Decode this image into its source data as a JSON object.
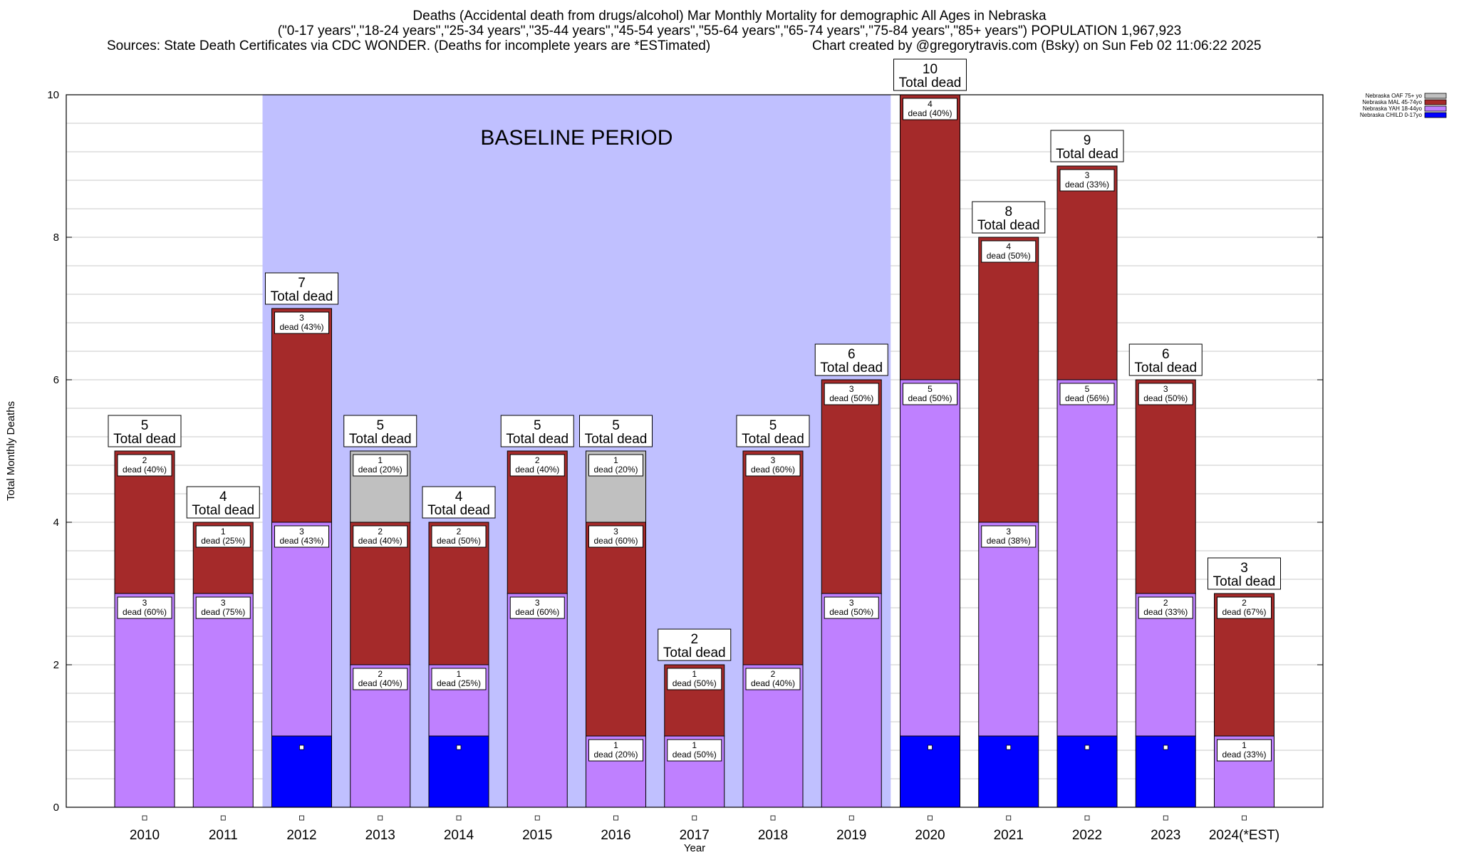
{
  "header": {
    "title": "Deaths (Accidental death from drugs/alcohol) Mar Monthly Mortality for demographic All Ages in Nebraska",
    "subtitle": "(\"0-17 years\",\"18-24 years\",\"25-34 years\",\"35-44 years\",\"45-54 years\",\"55-64 years\",\"65-74 years\",\"75-84 years\",\"85+ years\") POPULATION 1,967,923",
    "sources": "Sources: State Death Certificates via CDC WONDER. (Deaths for incomplete years are *ESTimated)",
    "credit": "Chart created by @gregorytravis.com (Bsky) on Sun Feb 02 11:06:22 2025"
  },
  "chart_data": {
    "type": "bar",
    "stacked": true,
    "categories": [
      "2010",
      "2011",
      "2012",
      "2013",
      "2014",
      "2015",
      "2016",
      "2017",
      "2018",
      "2019",
      "2020",
      "2021",
      "2022",
      "2023",
      "2024(*EST)"
    ],
    "series": [
      {
        "name": "Nebraska CHILD 0-17yo",
        "color": "#0000ff",
        "values": [
          0,
          0,
          1,
          0,
          1,
          0,
          0,
          0,
          0,
          0,
          1,
          1,
          1,
          1,
          0
        ]
      },
      {
        "name": "Nebraska YAH 18-44yo",
        "color": "#bf80ff",
        "values": [
          3,
          3,
          3,
          2,
          1,
          3,
          1,
          1,
          2,
          3,
          5,
          3,
          5,
          2,
          1
        ]
      },
      {
        "name": "Nebraska MAL 45-74yo",
        "color": "#a52a2a",
        "values": [
          2,
          1,
          3,
          2,
          2,
          2,
          3,
          1,
          3,
          3,
          4,
          4,
          3,
          3,
          2
        ]
      },
      {
        "name": "Nebraska OAF 75+ yo",
        "color": "#c0c0c0",
        "values": [
          0,
          0,
          0,
          1,
          0,
          0,
          1,
          0,
          0,
          0,
          0,
          0,
          0,
          0,
          0
        ]
      }
    ],
    "segment_labels": [
      [
        null,
        {
          "n": "3",
          "t": "dead (60%)"
        },
        {
          "n": "2",
          "t": "dead (40%)"
        },
        null
      ],
      [
        null,
        {
          "n": "3",
          "t": "dead (75%)"
        },
        {
          "n": "1",
          "t": "dead (25%)"
        },
        null
      ],
      [
        null,
        {
          "n": "3",
          "t": "dead (43%)"
        },
        {
          "n": "3",
          "t": "dead (43%)"
        },
        null
      ],
      [
        null,
        {
          "n": "2",
          "t": "dead (40%)"
        },
        {
          "n": "2",
          "t": "dead (40%)"
        },
        {
          "n": "1",
          "t": "dead (20%)"
        }
      ],
      [
        null,
        {
          "n": "1",
          "t": "dead (25%)"
        },
        {
          "n": "2",
          "t": "dead (50%)"
        },
        null
      ],
      [
        null,
        {
          "n": "3",
          "t": "dead (60%)"
        },
        {
          "n": "2",
          "t": "dead (40%)"
        },
        null
      ],
      [
        null,
        {
          "n": "1",
          "t": "dead (20%)"
        },
        {
          "n": "3",
          "t": "dead (60%)"
        },
        {
          "n": "1",
          "t": "dead (20%)"
        }
      ],
      [
        null,
        {
          "n": "1",
          "t": "dead (50%)"
        },
        {
          "n": "1",
          "t": "dead (50%)"
        },
        null
      ],
      [
        null,
        {
          "n": "2",
          "t": "dead (40%)"
        },
        {
          "n": "3",
          "t": "dead (60%)"
        },
        null
      ],
      [
        null,
        {
          "n": "3",
          "t": "dead (50%)"
        },
        {
          "n": "3",
          "t": "dead (50%)"
        },
        null
      ],
      [
        null,
        {
          "n": "5",
          "t": "dead (50%)"
        },
        {
          "n": "4",
          "t": "dead (40%)"
        },
        null
      ],
      [
        null,
        {
          "n": "3",
          "t": "dead (38%)"
        },
        {
          "n": "4",
          "t": "dead (50%)"
        },
        null
      ],
      [
        null,
        {
          "n": "5",
          "t": "dead (56%)"
        },
        {
          "n": "3",
          "t": "dead (33%)"
        },
        null
      ],
      [
        null,
        {
          "n": "2",
          "t": "dead (33%)"
        },
        {
          "n": "3",
          "t": "dead (50%)"
        },
        null
      ],
      [
        null,
        {
          "n": "1",
          "t": "dead (33%)"
        },
        {
          "n": "2",
          "t": "dead (67%)"
        },
        null
      ]
    ],
    "totals": [
      "5",
      "4",
      "7",
      "5",
      "4",
      "5",
      "5",
      "2",
      "5",
      "6",
      "10",
      "8",
      "9",
      "6",
      "3"
    ],
    "total_suffix": "Total dead",
    "baseline": {
      "label": "BASELINE PERIOD",
      "from": "2012",
      "to": "2019",
      "color": "#c0c0ff"
    },
    "xlabel": "Year",
    "ylabel": "Total Monthly Deaths",
    "ylim": [
      0,
      10
    ],
    "yticks": [
      "0",
      "2",
      "4",
      "6",
      "8",
      "10"
    ],
    "grid": true,
    "legend_position": "top-right"
  }
}
